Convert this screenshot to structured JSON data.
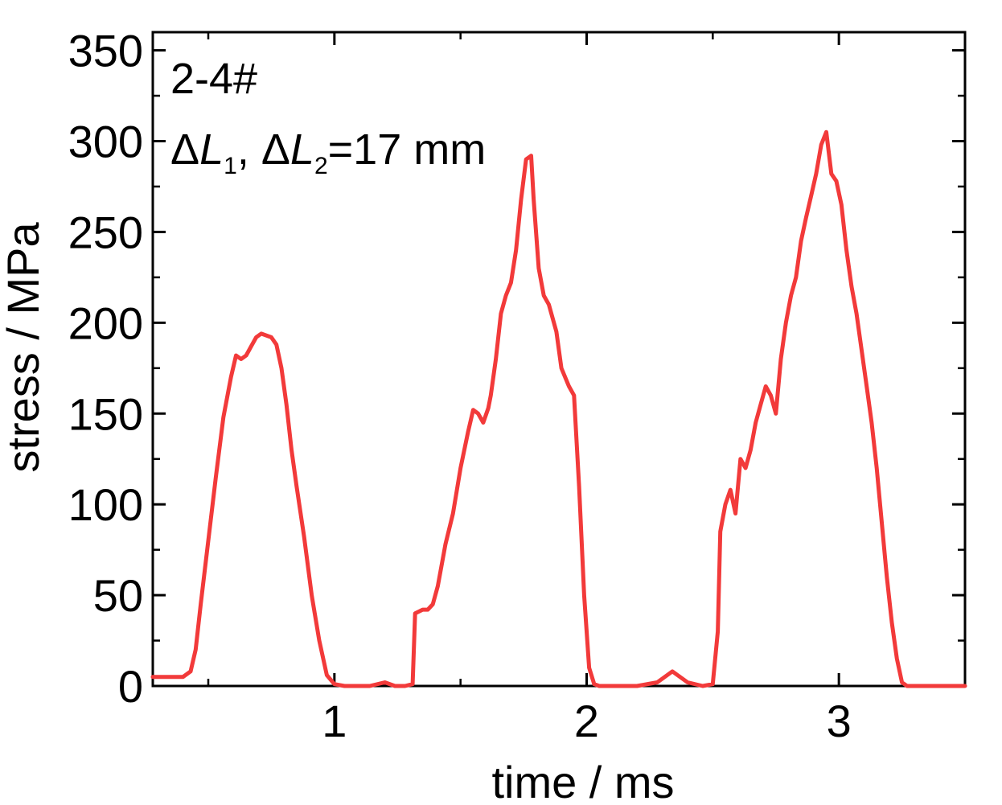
{
  "chart_data": {
    "type": "line",
    "xlabel": "time / ms",
    "ylabel": "stress / MPa",
    "xlim": [
      0.28,
      3.5
    ],
    "ylim": [
      0,
      360
    ],
    "x_ticks": [
      1,
      2,
      3
    ],
    "x_tick_labels": [
      "1",
      "2",
      "3"
    ],
    "y_ticks": [
      0,
      50,
      100,
      150,
      200,
      250,
      300,
      350
    ],
    "y_tick_labels": [
      "0",
      "50",
      "100",
      "150",
      "200",
      "250",
      "300",
      "350"
    ],
    "grid": false,
    "annotations": {
      "sample": "2-4#",
      "delta": "Δ",
      "L": "L",
      "sub1": "1",
      "sep": ", ",
      "sub2": "2",
      "rest": "=17 mm"
    },
    "series": [
      {
        "color": "#f23a3a",
        "x": [
          0.28,
          0.4,
          0.43,
          0.45,
          0.47,
          0.5,
          0.53,
          0.56,
          0.59,
          0.61,
          0.63,
          0.65,
          0.67,
          0.69,
          0.71,
          0.73,
          0.75,
          0.77,
          0.79,
          0.81,
          0.83,
          0.85,
          0.88,
          0.91,
          0.94,
          0.97,
          1.0,
          1.04,
          1.08,
          1.14,
          1.2,
          1.24,
          1.28,
          1.31,
          1.32,
          1.35,
          1.37,
          1.39,
          1.41,
          1.44,
          1.47,
          1.5,
          1.53,
          1.55,
          1.57,
          1.59,
          1.61,
          1.62,
          1.64,
          1.66,
          1.68,
          1.7,
          1.72,
          1.74,
          1.76,
          1.78,
          1.79,
          1.81,
          1.83,
          1.85,
          1.88,
          1.9,
          1.93,
          1.95,
          1.97,
          1.99,
          2.01,
          2.03,
          2.05,
          2.07,
          2.1,
          2.2,
          2.28,
          2.34,
          2.4,
          2.46,
          2.5,
          2.52,
          2.53,
          2.55,
          2.57,
          2.59,
          2.61,
          2.63,
          2.65,
          2.67,
          2.69,
          2.71,
          2.73,
          2.75,
          2.77,
          2.79,
          2.81,
          2.83,
          2.85,
          2.87,
          2.89,
          2.91,
          2.93,
          2.95,
          2.97,
          2.99,
          3.01,
          3.03,
          3.05,
          3.07,
          3.09,
          3.11,
          3.13,
          3.15,
          3.17,
          3.19,
          3.21,
          3.23,
          3.25,
          3.27,
          3.3,
          3.5
        ],
        "y": [
          5,
          5,
          8,
          20,
          45,
          80,
          115,
          148,
          170,
          182,
          180,
          182,
          187,
          192,
          194,
          193,
          192,
          188,
          175,
          155,
          130,
          110,
          82,
          50,
          25,
          6,
          1,
          0,
          0,
          0,
          2,
          0,
          0,
          1,
          40,
          42,
          42,
          45,
          55,
          78,
          95,
          120,
          140,
          152,
          150,
          145,
          153,
          160,
          180,
          205,
          215,
          222,
          240,
          268,
          290,
          292,
          268,
          230,
          215,
          210,
          195,
          175,
          165,
          160,
          110,
          50,
          10,
          1,
          0,
          0,
          0,
          0,
          2,
          8,
          2,
          0,
          1,
          30,
          85,
          100,
          108,
          95,
          125,
          120,
          130,
          145,
          155,
          165,
          160,
          150,
          180,
          200,
          215,
          225,
          245,
          258,
          270,
          282,
          298,
          305,
          282,
          278,
          265,
          240,
          220,
          205,
          185,
          165,
          145,
          120,
          90,
          60,
          35,
          15,
          2,
          0,
          0,
          0
        ]
      }
    ]
  }
}
